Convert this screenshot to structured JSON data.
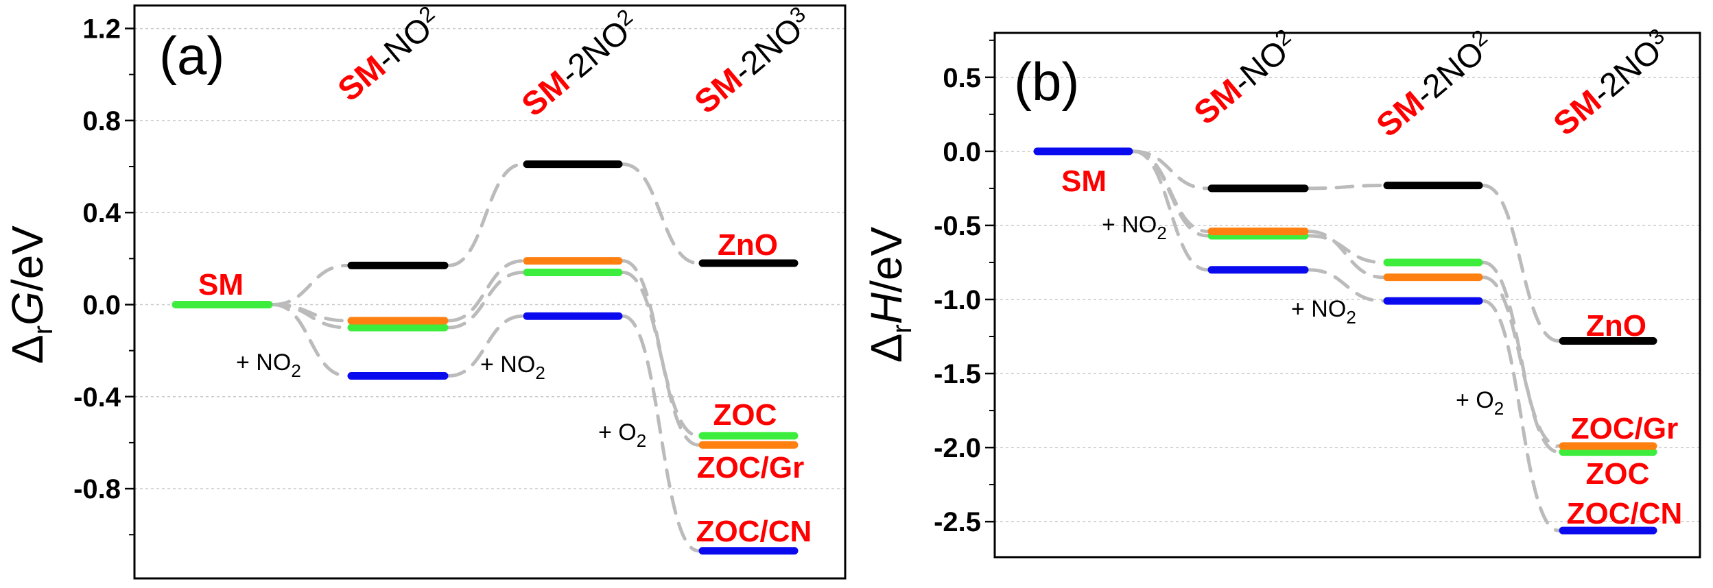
{
  "chart_data": [
    {
      "panel": "(a)",
      "type": "line",
      "ylabel": {
        "delta": "Δ",
        "sub": "r",
        "var": "G",
        "unit": "/eV"
      },
      "ylim": [
        -1.19,
        1.3
      ],
      "yticks": [
        "-0.8",
        "-0.4",
        "0.0",
        "0.4",
        "0.8",
        "1.2"
      ],
      "ytick_values": [
        -0.8,
        -0.4,
        0.0,
        0.4,
        0.8,
        1.2
      ],
      "minor_step": 0.2,
      "grid": true,
      "stages": [
        {
          "sm": "SM",
          "rest": "-NO",
          "sub": "2"
        },
        {
          "sm": "SM",
          "rest": "-2NO",
          "sub": "2"
        },
        {
          "sm": "SM",
          "rest": "-2NO",
          "sub": "3"
        }
      ],
      "initial": {
        "label": "SM",
        "value": 0.0,
        "color": "#3ded3d"
      },
      "series": [
        {
          "name": "ZnO",
          "color": "#000000",
          "values": [
            0.17,
            0.61,
            0.18
          ]
        },
        {
          "name": "ZOC",
          "color": "#3ded3d",
          "values": [
            -0.1,
            0.14,
            -0.57
          ]
        },
        {
          "name": "ZOC/Gr",
          "color": "#ff8010",
          "values": [
            -0.07,
            0.19,
            -0.61
          ]
        },
        {
          "name": "ZOC/CN",
          "color": "#0a0aee",
          "values": [
            -0.31,
            -0.05,
            -1.07
          ]
        }
      ],
      "annotations": [
        {
          "text": "+ NO",
          "sub": "2"
        },
        {
          "text": "+ NO",
          "sub": "2"
        },
        {
          "text": "+ O",
          "sub": "2"
        }
      ]
    },
    {
      "panel": "(b)",
      "type": "line",
      "ylabel": {
        "delta": "Δ",
        "sub": "r",
        "var": "H",
        "unit": "/eV"
      },
      "ylim": [
        -2.74,
        0.8
      ],
      "yticks": [
        "-2.5",
        "-2.0",
        "-1.5",
        "-1.0",
        "-0.5",
        "0.0",
        "0.5"
      ],
      "ytick_values": [
        -2.5,
        -2.0,
        -1.5,
        -1.0,
        -0.5,
        0.0,
        0.5
      ],
      "minor_step": 0.25,
      "grid": true,
      "stages": [
        {
          "sm": "SM",
          "rest": "-NO",
          "sub": "2"
        },
        {
          "sm": "SM",
          "rest": "-2NO",
          "sub": "2"
        },
        {
          "sm": "SM",
          "rest": "-2NO",
          "sub": "3"
        }
      ],
      "initial": {
        "label": "SM",
        "value": 0.0,
        "color": "#0a0aee"
      },
      "series": [
        {
          "name": "ZnO",
          "color": "#000000",
          "values": [
            -0.25,
            -0.23,
            -1.28
          ]
        },
        {
          "name": "ZOC",
          "color": "#3ded3d",
          "values": [
            -0.57,
            -0.75,
            -2.03
          ]
        },
        {
          "name": "ZOC/Gr",
          "color": "#ff8010",
          "values": [
            -0.54,
            -0.85,
            -1.99
          ]
        },
        {
          "name": "ZOC/CN",
          "color": "#0a0aee",
          "values": [
            -0.8,
            -1.01,
            -2.56
          ]
        }
      ],
      "annotations": [
        {
          "text": "+ NO",
          "sub": "2"
        },
        {
          "text": "+ NO",
          "sub": "2"
        },
        {
          "text": "+ O",
          "sub": "2"
        }
      ]
    }
  ],
  "colors": {
    "label_red": "#ff0000",
    "connector": "#bbbbbb",
    "grid": "#c8c8c8"
  }
}
